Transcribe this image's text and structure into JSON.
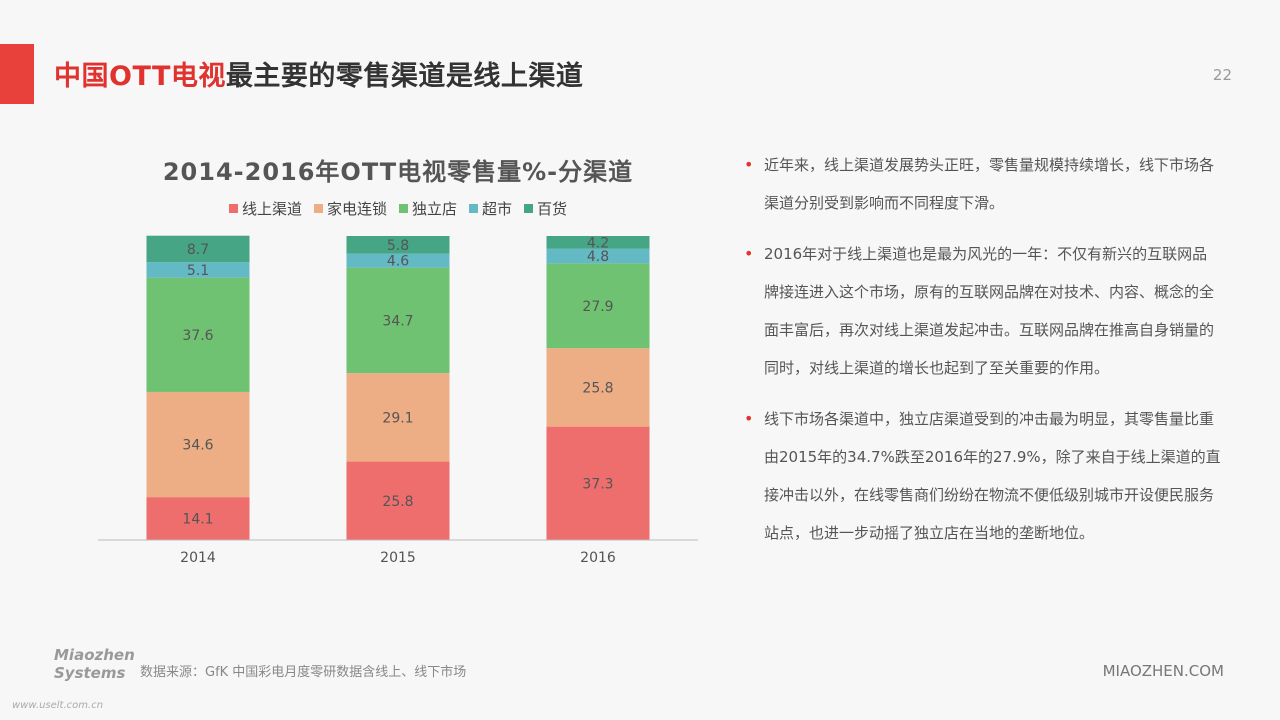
{
  "header": {
    "title_highlight": "中国OTT电视",
    "title_rest": "最主要的零售渠道是线上渠道",
    "page_number": "22"
  },
  "colors": {
    "accent": "#e8403a",
    "online": "#ee6e6e",
    "chain": "#eeae85",
    "independent": "#6fc271",
    "supermarket": "#63b9c4",
    "department": "#45a584"
  },
  "chart_data": {
    "type": "bar",
    "stacked": true,
    "title": "2014-2016年OTT电视零售量%-分渠道",
    "categories": [
      "2014",
      "2015",
      "2016"
    ],
    "series": [
      {
        "name": "线上渠道",
        "values": [
          14.1,
          25.8,
          37.3
        ],
        "color": "#ee6e6e"
      },
      {
        "name": "家电连锁",
        "values": [
          34.6,
          29.1,
          25.8
        ],
        "color": "#eeae85"
      },
      {
        "name": "独立店",
        "values": [
          37.6,
          34.7,
          27.9
        ],
        "color": "#6fc271"
      },
      {
        "name": "超市",
        "values": [
          5.1,
          4.6,
          4.8
        ],
        "color": "#63b9c4"
      },
      {
        "name": "百货",
        "values": [
          8.7,
          5.8,
          4.2
        ],
        "color": "#45a584"
      }
    ],
    "ylim": [
      0,
      100
    ],
    "legend": "top",
    "grid": false
  },
  "bullets": [
    "近年来，线上渠道发展势头正旺，零售量规模持续增长，线下市场各渠道分别受到影响而不同程度下滑。",
    "2016年对于线上渠道也是最为风光的一年：不仅有新兴的互联网品牌接连进入这个市场，原有的互联网品牌在对技术、内容、概念的全面丰富后，再次对线上渠道发起冲击。互联网品牌在推高自身销量的同时，对线上渠道的增长也起到了至关重要的作用。",
    "线下市场各渠道中，独立店渠道受到的冲击最为明显，其零售量比重由2015年的34.7%跌至2016年的27.9%，除了来自于线上渠道的直接冲击以外，在线零售商们纷纷在物流不便低级别城市开设便民服务站点，也进一步动摇了独立店在当地的垄断地位。"
  ],
  "footer": {
    "source": "数据来源：GfK 中国彩电月度零研数据含线上、线下市场",
    "brand": "MIAOZHEN.COM",
    "logo_line1": "Miaozhen",
    "logo_line2": "Systems",
    "logo_url": "www.uselt.com.cn"
  }
}
